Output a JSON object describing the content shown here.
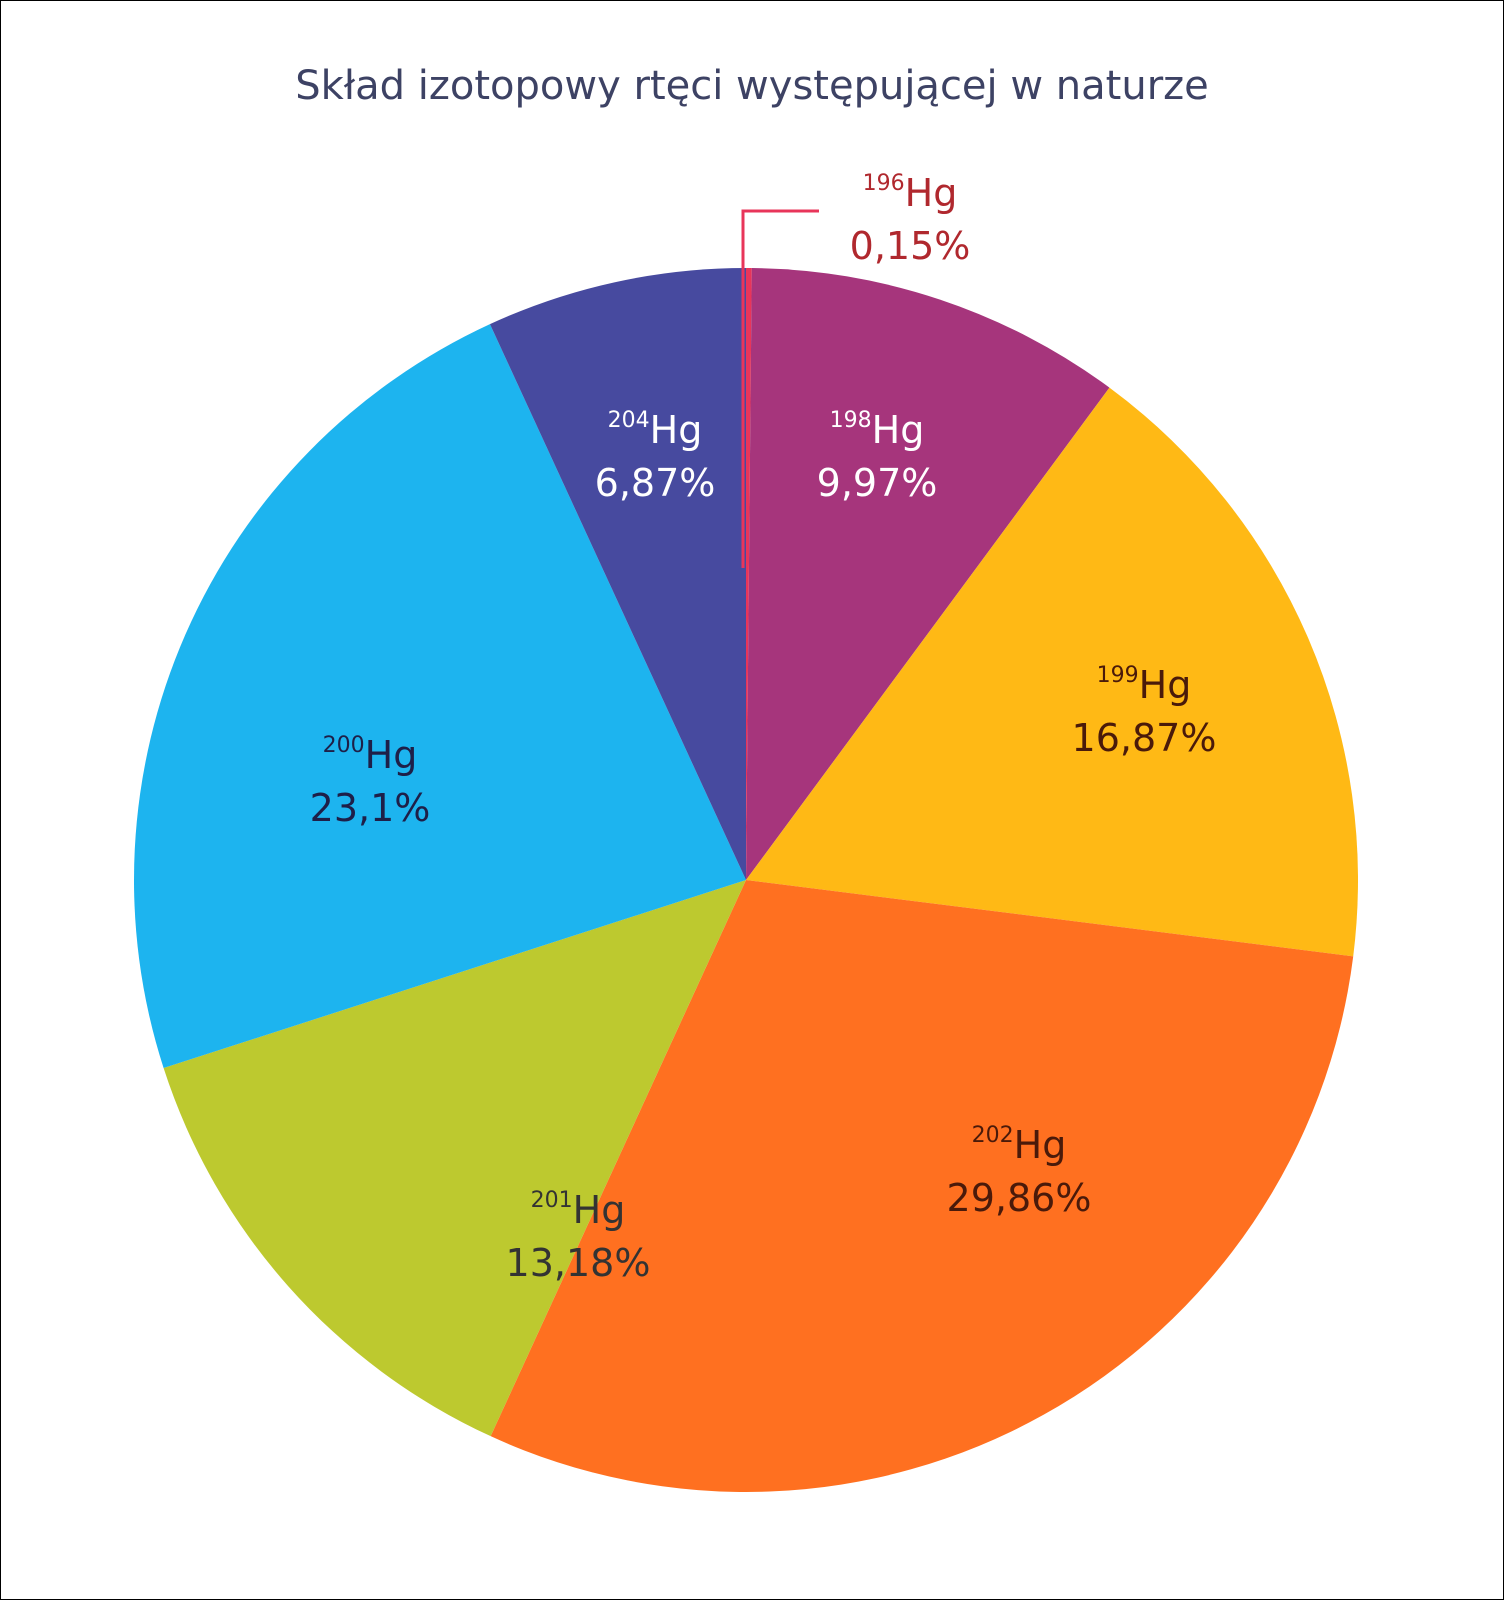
{
  "chart_data": {
    "type": "pie",
    "title": "Skład izotopowy rtęci występującej w naturze",
    "start_angle": "top, clockwise",
    "slices": [
      {
        "mass": "196",
        "symbol": "Hg",
        "value": 0.15,
        "label": "0,15%",
        "color": "#e8355a",
        "label_color": "#b0282e",
        "callout": true
      },
      {
        "mass": "198",
        "symbol": "Hg",
        "value": 9.97,
        "label": "9,97%",
        "color": "#a6357c",
        "label_color": "#ffffff"
      },
      {
        "mass": "199",
        "symbol": "Hg",
        "value": 16.87,
        "label": "16,87%",
        "color": "#ffb915",
        "label_color": "#4a1a0a"
      },
      {
        "mass": "202",
        "symbol": "Hg",
        "value": 29.86,
        "label": "29,86%",
        "color": "#ff7020",
        "label_color": "#4a1a0a"
      },
      {
        "mass": "201",
        "symbol": "Hg",
        "value": 13.18,
        "label": "13,18%",
        "color": "#bdc92f",
        "label_color": "#333333"
      },
      {
        "mass": "200",
        "symbol": "Hg",
        "value": 23.1,
        "label": "23,1%",
        "color": "#1db4ef",
        "label_color": "#1e1f48"
      },
      {
        "mass": "204",
        "symbol": "Hg",
        "value": 6.87,
        "label": "6,87%",
        "color": "#474a9f",
        "label_color": "#ffffff"
      }
    ]
  }
}
